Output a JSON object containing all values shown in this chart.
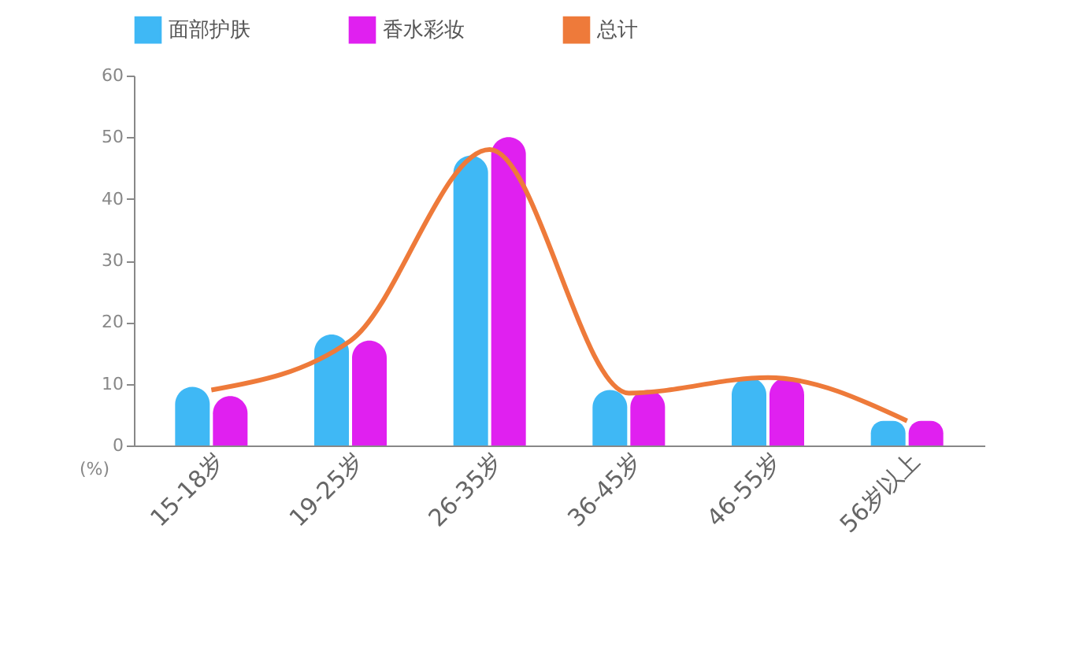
{
  "chart_data": {
    "type": "bar",
    "ylabel": "(%)",
    "categories": [
      "15-18岁",
      "19-25岁",
      "26-35岁",
      "36-45岁",
      "46-55岁",
      "56岁以上"
    ],
    "series": [
      {
        "name": "面部护肤",
        "color": "#3fb8f5",
        "values": [
          9.5,
          18,
          47,
          9,
          11,
          4
        ]
      },
      {
        "name": "香水彩妆",
        "color": "#e020f0",
        "values": [
          8,
          17,
          50,
          9,
          11,
          4
        ]
      },
      {
        "name": "总计",
        "type": "line",
        "color": "#ee7a3a",
        "values": [
          9,
          17,
          48,
          8.5,
          11,
          4
        ]
      }
    ],
    "ylim": [
      0,
      60
    ],
    "yticks": [
      0,
      10,
      20,
      30,
      40,
      50,
      60
    ],
    "grid": false,
    "legend": "top"
  }
}
